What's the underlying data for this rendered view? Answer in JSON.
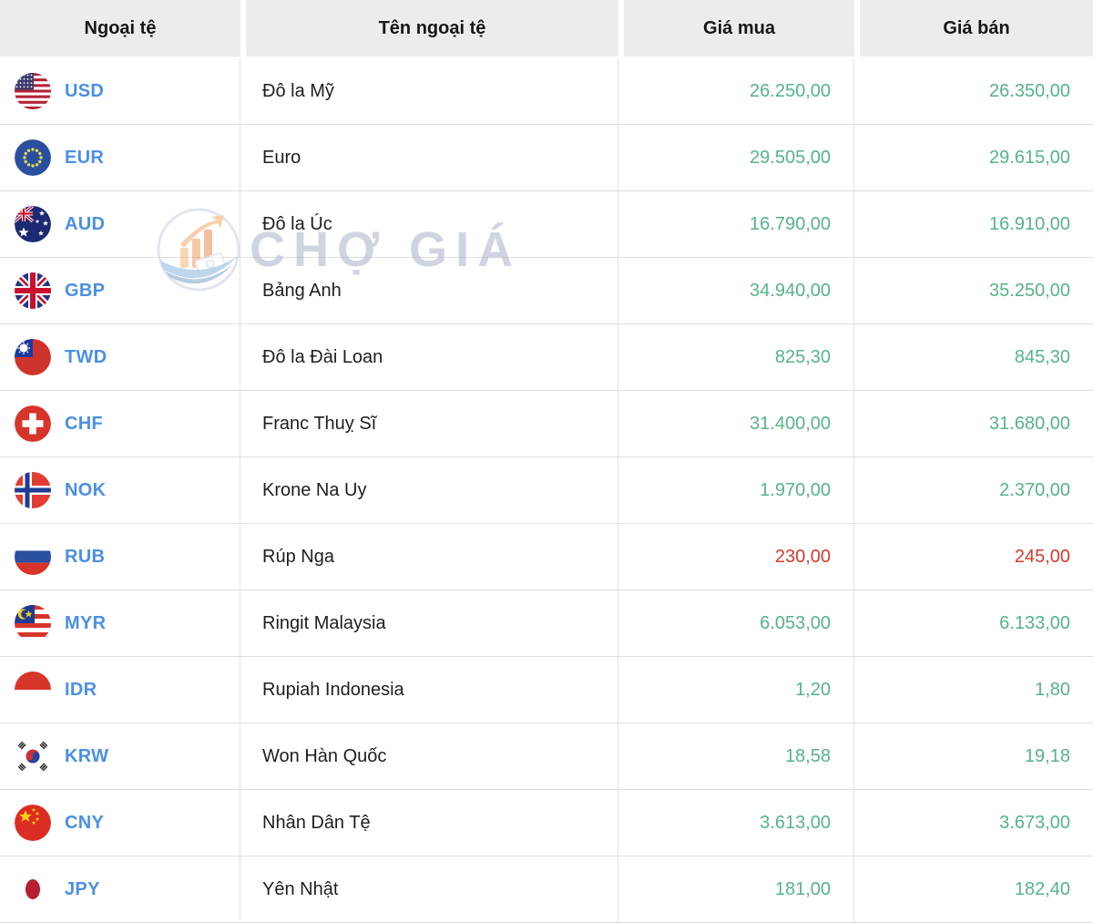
{
  "colors": {
    "positive_green": "#56b386",
    "negative_red": "#d6392f",
    "code_blue": "#4b8fe4",
    "header_bg": "#ececec",
    "border": "#e2e2e2",
    "watermark": "#aab2c9"
  },
  "watermark": {
    "text": "CHỢ GIÁ",
    "logo": "cho-gia-logo-icon"
  },
  "table": {
    "columns": [
      {
        "label": "Ngoại tệ"
      },
      {
        "label": "Tên ngoại tệ"
      },
      {
        "label": "Giá mua"
      },
      {
        "label": "Giá bán"
      }
    ],
    "rows": [
      {
        "code": "USD",
        "flag": "usd-flag-icon",
        "name": "Đô la Mỹ",
        "buy": "26.250,00",
        "sell": "26.350,00",
        "trend": "up"
      },
      {
        "code": "EUR",
        "flag": "eur-flag-icon",
        "name": "Euro",
        "buy": "29.505,00",
        "sell": "29.615,00",
        "trend": "up"
      },
      {
        "code": "AUD",
        "flag": "aud-flag-icon",
        "name": "Đô la Úc",
        "buy": "16.790,00",
        "sell": "16.910,00",
        "trend": "up"
      },
      {
        "code": "GBP",
        "flag": "gbp-flag-icon",
        "name": "Bảng Anh",
        "buy": "34.940,00",
        "sell": "35.250,00",
        "trend": "up"
      },
      {
        "code": "TWD",
        "flag": "twd-flag-icon",
        "name": "Đô la Đài Loan",
        "buy": "825,30",
        "sell": "845,30",
        "trend": "up"
      },
      {
        "code": "CHF",
        "flag": "chf-flag-icon",
        "name": "Franc Thuỵ Sĩ",
        "buy": "31.400,00",
        "sell": "31.680,00",
        "trend": "up"
      },
      {
        "code": "NOK",
        "flag": "nok-flag-icon",
        "name": "Krone Na Uy",
        "buy": "1.970,00",
        "sell": "2.370,00",
        "trend": "up"
      },
      {
        "code": "RUB",
        "flag": "rub-flag-icon",
        "name": "Rúp Nga",
        "buy": "230,00",
        "sell": "245,00",
        "trend": "down"
      },
      {
        "code": "MYR",
        "flag": "myr-flag-icon",
        "name": "Ringit Malaysia",
        "buy": "6.053,00",
        "sell": "6.133,00",
        "trend": "up"
      },
      {
        "code": "IDR",
        "flag": "idr-flag-icon",
        "name": "Rupiah Indonesia",
        "buy": "1,20",
        "sell": "1,80",
        "trend": "up"
      },
      {
        "code": "KRW",
        "flag": "krw-flag-icon",
        "name": "Won Hàn Quốc",
        "buy": "18,58",
        "sell": "19,18",
        "trend": "up"
      },
      {
        "code": "CNY",
        "flag": "cny-flag-icon",
        "name": "Nhân Dân Tệ",
        "buy": "3.613,00",
        "sell": "3.673,00",
        "trend": "up"
      },
      {
        "code": "JPY",
        "flag": "jpy-flag-icon",
        "name": "Yên Nhật",
        "buy": "181,00",
        "sell": "182,40",
        "trend": "up"
      }
    ]
  }
}
